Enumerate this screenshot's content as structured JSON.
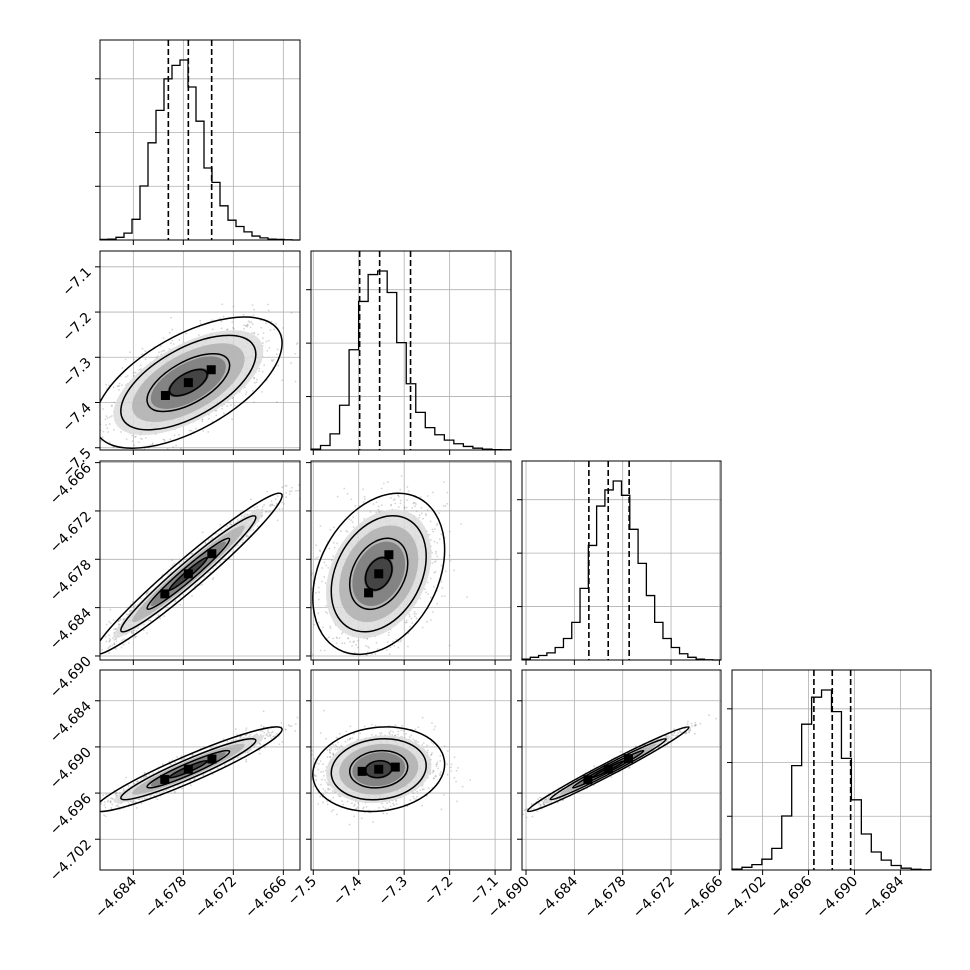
{
  "chart_data": {
    "type": "corner",
    "grid": true,
    "params": [
      {
        "ticks": [
          "−4.684",
          "−4.678",
          "−4.672",
          "−4.666"
        ],
        "tick_values": [
          -4.684,
          -4.678,
          -4.672,
          -4.666
        ],
        "range": [
          -4.688,
          -4.664
        ]
      },
      {
        "ticks": [
          "−7.5",
          "−7.4",
          "−7.3",
          "−7.2",
          "−7.1"
        ],
        "tick_values": [
          -7.5,
          -7.4,
          -7.3,
          -7.2,
          -7.1
        ],
        "range": [
          -7.505,
          -7.065
        ]
      },
      {
        "ticks": [
          "−4.690",
          "−4.684",
          "−4.678",
          "−4.672",
          "−4.666"
        ],
        "tick_values": [
          -4.69,
          -4.684,
          -4.678,
          -4.672,
          -4.666
        ],
        "range": [
          -4.6905,
          -4.6658
        ]
      },
      {
        "ticks": [
          "−4.702",
          "−4.696",
          "−4.690",
          "−4.684"
        ],
        "tick_values": [
          -4.702,
          -4.696,
          -4.69,
          -4.684
        ],
        "range": [
          -4.706,
          -4.68
        ]
      }
    ],
    "hist_quantiles": [
      [
        -4.6798,
        -4.6774,
        -4.6746
      ],
      [
        -7.398,
        -7.354,
        -7.286
      ],
      [
        -4.6822,
        -4.6798,
        -4.6772
      ],
      [
        -4.6953,
        -4.6929,
        -4.6905
      ]
    ],
    "histograms": [
      {
        "bins_from": -4.688,
        "bins_to": -4.664,
        "counts": [
          3,
          5,
          15,
          38,
          115,
          300,
          540,
          720,
          895,
          970,
          1000,
          850,
          660,
          400,
          320,
          190,
          110,
          75,
          45,
          22,
          12,
          5,
          3,
          1,
          0
        ]
      },
      {
        "bins_from": -7.505,
        "bins_to": -7.065,
        "counts": [
          5,
          25,
          90,
          250,
          560,
          830,
          980,
          1000,
          880,
          600,
          370,
          210,
          125,
          85,
          55,
          35,
          20,
          10,
          5,
          2,
          1
        ]
      },
      {
        "bins_from": -4.6905,
        "bins_to": -4.6658,
        "counts": [
          5,
          15,
          25,
          40,
          70,
          120,
          210,
          400,
          640,
          860,
          950,
          1000,
          920,
          730,
          540,
          360,
          210,
          120,
          70,
          35,
          15,
          5,
          1,
          0
        ]
      },
      {
        "bins_from": -4.706,
        "bins_to": -4.68,
        "counts": [
          5,
          15,
          30,
          60,
          120,
          300,
          580,
          810,
          960,
          1000,
          880,
          620,
          390,
          200,
          100,
          55,
          25,
          10,
          4,
          1
        ]
      }
    ],
    "pairs": [
      {
        "x": 0,
        "y": 1,
        "mean": [
          -4.6774,
          -7.356
        ],
        "sd": [
          0.0045,
          0.058
        ],
        "corr": 0.6
      },
      {
        "x": 0,
        "y": 2,
        "mean": [
          -4.6774,
          -4.6798
        ],
        "sd": [
          0.0045,
          0.004
        ],
        "corr": 0.97
      },
      {
        "x": 1,
        "y": 2,
        "mean": [
          -7.356,
          -4.6798
        ],
        "sd": [
          0.058,
          0.004
        ],
        "corr": 0.3
      },
      {
        "x": 0,
        "y": 3,
        "mean": [
          -4.6774,
          -4.6929
        ],
        "sd": [
          0.0045,
          0.0022
        ],
        "corr": 0.94
      },
      {
        "x": 1,
        "y": 3,
        "mean": [
          -7.356,
          -4.6929
        ],
        "sd": [
          0.058,
          0.0022
        ],
        "corr": 0.12
      },
      {
        "x": 2,
        "y": 3,
        "mean": [
          -4.6798,
          -4.6929
        ],
        "sd": [
          0.004,
          0.0022
        ],
        "corr": 0.985
      }
    ]
  }
}
